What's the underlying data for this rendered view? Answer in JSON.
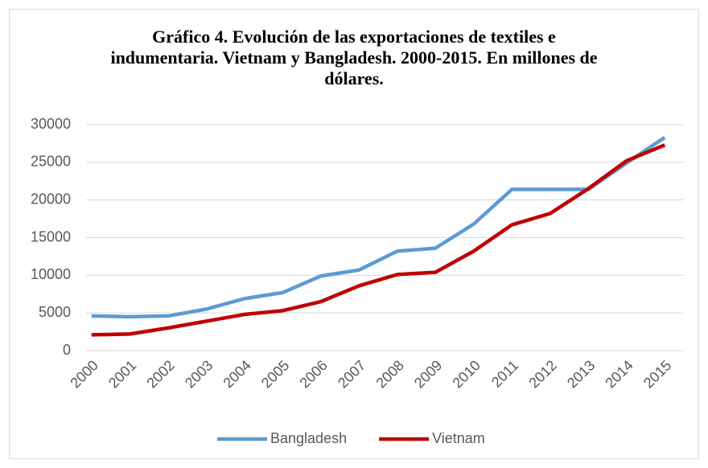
{
  "chart_data": {
    "type": "line",
    "title": "Gráfico 4. Evolución de las exportaciones de textiles e indumentaria. Vietnam y Bangladesh. 2000-2015. En millones de dólares.",
    "categories": [
      "2000",
      "2001",
      "2002",
      "2003",
      "2004",
      "2005",
      "2006",
      "2007",
      "2008",
      "2009",
      "2010",
      "2011",
      "2012",
      "2013",
      "2014",
      "2015"
    ],
    "series": [
      {
        "name": "Bangladesh",
        "color": "#5b9bd5",
        "values": [
          4600,
          4500,
          4600,
          5500,
          6900,
          7700,
          9900,
          10700,
          13200,
          13600,
          16800,
          21400,
          21400,
          21400,
          24900,
          28300
        ]
      },
      {
        "name": "Vietnam",
        "color": "#c00000",
        "values": [
          2100,
          2200,
          3000,
          3900,
          4800,
          5300,
          6500,
          8600,
          10100,
          10400,
          13200,
          16700,
          18200,
          21500,
          25200,
          27300
        ]
      }
    ],
    "ylim": [
      0,
      30000
    ],
    "yticks": [
      0,
      5000,
      10000,
      15000,
      20000,
      25000,
      30000
    ],
    "grid": true,
    "legend": "bottom"
  }
}
